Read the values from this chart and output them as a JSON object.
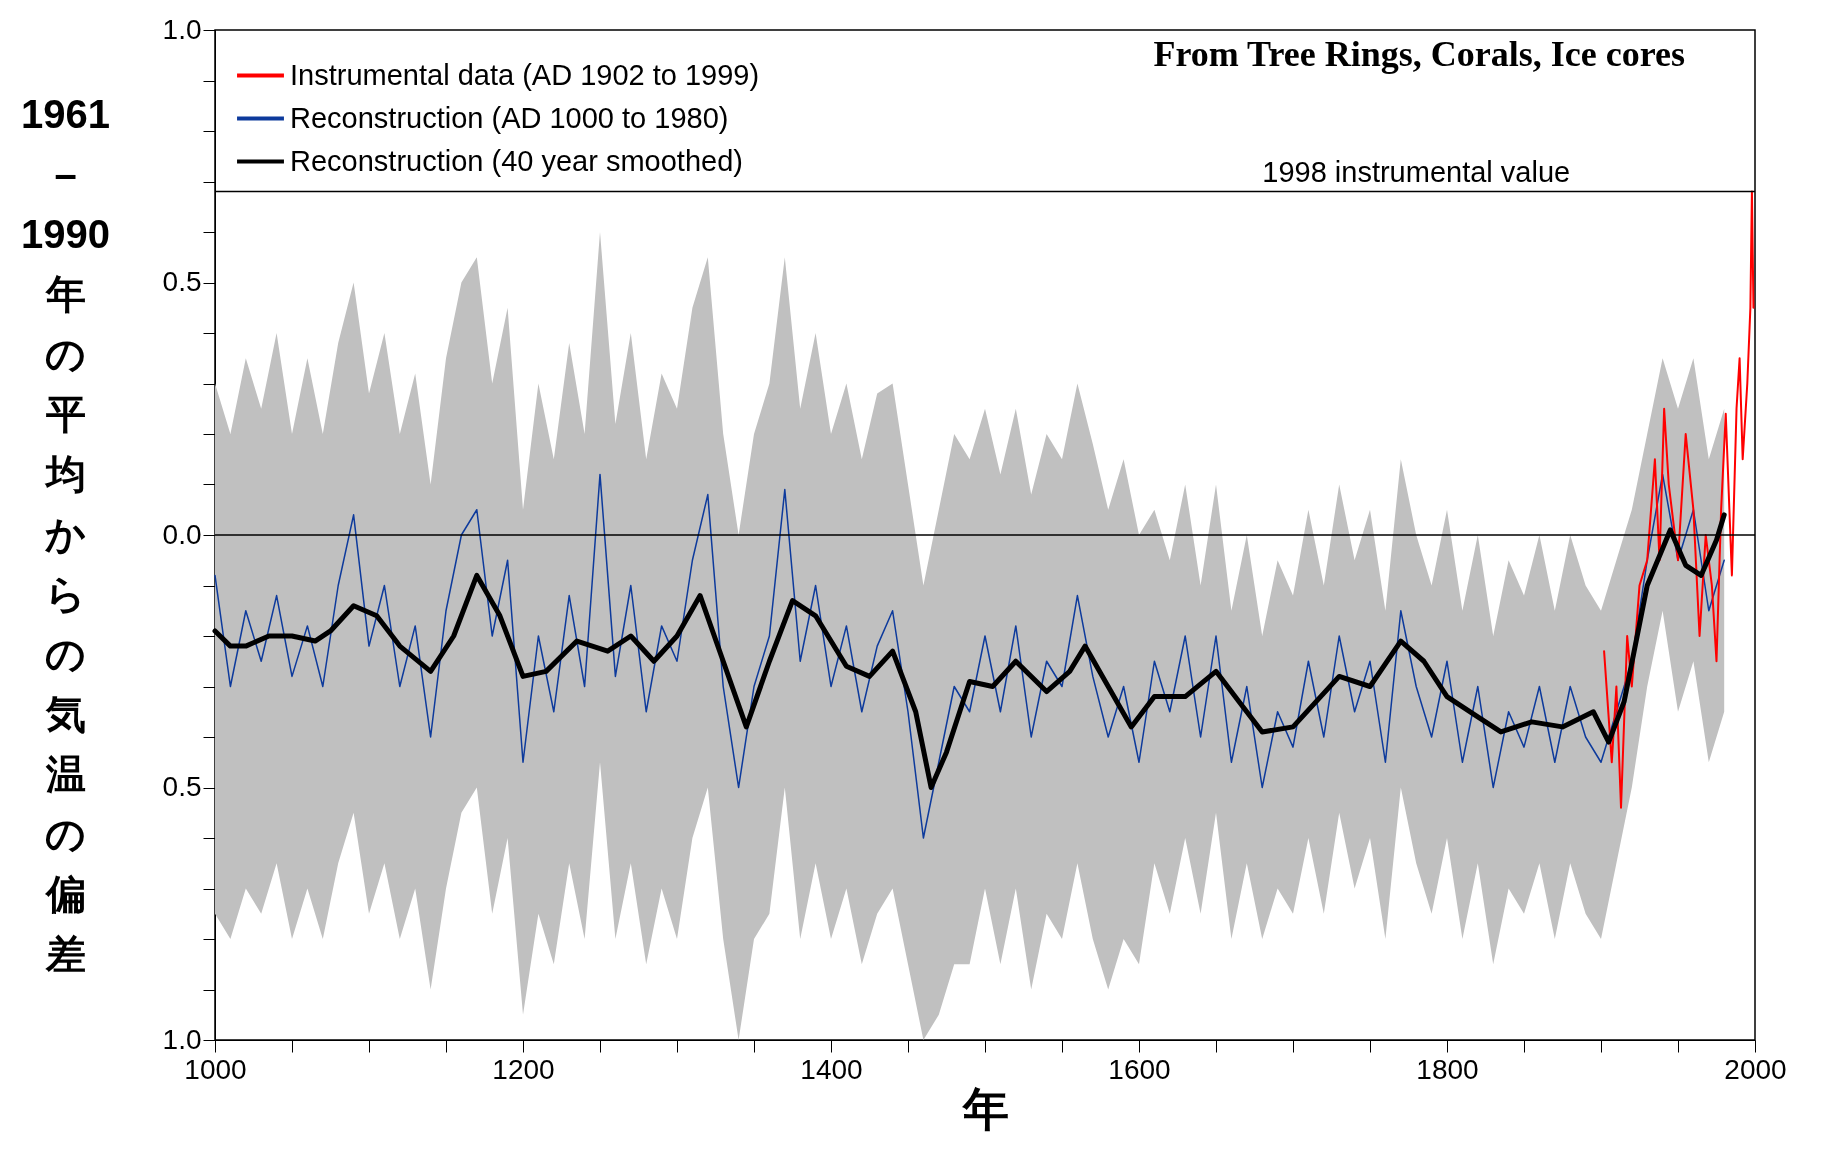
{
  "chart_data": {
    "type": "line",
    "annotations": [
      "From Tree Rings, Corals, Ice cores"
    ],
    "xlabel": "年",
    "ylabel": "1961–1990年の平均からの気温の偏差",
    "xlim": [
      1000,
      2000
    ],
    "xticks": [
      1000,
      {
        "value": 1050,
        "label": null
      },
      {
        "value": 1100,
        "label": null
      },
      {
        "value": 1150,
        "label": null
      },
      1200,
      {
        "value": 1250,
        "label": null
      },
      {
        "value": 1300,
        "label": null
      },
      {
        "value": 1350,
        "label": null
      },
      1400,
      {
        "value": 1450,
        "label": null
      },
      {
        "value": 1500,
        "label": null
      },
      {
        "value": 1550,
        "label": null
      },
      1600,
      {
        "value": 1650,
        "label": null
      },
      {
        "value": 1700,
        "label": null
      },
      {
        "value": 1750,
        "label": null
      },
      1800,
      {
        "value": 1850,
        "label": null
      },
      {
        "value": 1900,
        "label": null
      },
      {
        "value": 1950,
        "label": null
      },
      2000
    ],
    "ylim": [
      -1,
      1
    ],
    "yticks": [
      {
        "value": -1,
        "label": "1.0"
      },
      {
        "value": -0.9,
        "label": null
      },
      {
        "value": -0.8,
        "label": null
      },
      {
        "value": -0.7,
        "label": null
      },
      {
        "value": -0.6,
        "label": null
      },
      {
        "value": -0.5,
        "label": "0.5"
      },
      {
        "value": -0.4,
        "label": null
      },
      {
        "value": -0.3,
        "label": null
      },
      {
        "value": -0.2,
        "label": null
      },
      {
        "value": -0.1,
        "label": null
      },
      {
        "value": 0,
        "label": "0.0"
      },
      {
        "value": 0.1,
        "label": null
      },
      {
        "value": 0.2,
        "label": null
      },
      {
        "value": 0.3,
        "label": null
      },
      {
        "value": 0.4,
        "label": null
      },
      {
        "value": 0.5,
        "label": "0.5"
      },
      {
        "value": 0.6,
        "label": null
      },
      {
        "value": 0.7,
        "label": null
      },
      {
        "value": 0.8,
        "label": null
      },
      {
        "value": 0.9,
        "label": null
      },
      {
        "value": 1,
        "label": "1.0"
      }
    ],
    "grid": false,
    "legend": "top left",
    "marker": "none",
    "ref_lines": [
      {
        "axis": "y",
        "value": 0,
        "color": "#000000"
      },
      {
        "axis": "y",
        "value": 0.68,
        "label": "1998 instrumental value",
        "color": "#000000"
      }
    ],
    "series": [
      {
        "name": "Instrumental data (AD 1902 to 1999)",
        "color": "#ff0000",
        "x": [
          1902,
          1907,
          1910,
          1913,
          1917,
          1920,
          1925,
          1930,
          1935,
          1938,
          1941,
          1944,
          1950,
          1955,
          1960,
          1964,
          1968,
          1972,
          1975,
          1978,
          1981,
          1985,
          1988,
          1990,
          1992,
          1995,
          1997,
          1998,
          1999
        ],
        "values": [
          -0.23,
          -0.45,
          -0.3,
          -0.54,
          -0.2,
          -0.3,
          -0.1,
          -0.05,
          0.15,
          -0.05,
          0.25,
          0.1,
          -0.05,
          0.2,
          0.05,
          -0.2,
          0.0,
          -0.1,
          -0.25,
          0.05,
          0.24,
          -0.08,
          0.25,
          0.35,
          0.15,
          0.3,
          0.45,
          0.68,
          0.45
        ]
      },
      {
        "name": "Reconstruction (AD 1000 to 1980)",
        "color": "#0d3a9c",
        "x": [
          1000,
          1010,
          1020,
          1030,
          1040,
          1050,
          1060,
          1070,
          1080,
          1090,
          1100,
          1110,
          1120,
          1130,
          1140,
          1150,
          1160,
          1170,
          1180,
          1190,
          1200,
          1210,
          1220,
          1230,
          1240,
          1250,
          1260,
          1270,
          1280,
          1290,
          1300,
          1310,
          1320,
          1330,
          1340,
          1350,
          1360,
          1370,
          1380,
          1390,
          1400,
          1410,
          1420,
          1430,
          1440,
          1450,
          1460,
          1470,
          1480,
          1490,
          1500,
          1510,
          1520,
          1530,
          1540,
          1550,
          1560,
          1570,
          1580,
          1590,
          1600,
          1610,
          1620,
          1630,
          1640,
          1650,
          1660,
          1670,
          1680,
          1690,
          1700,
          1710,
          1720,
          1730,
          1740,
          1750,
          1760,
          1770,
          1780,
          1790,
          1800,
          1810,
          1820,
          1830,
          1840,
          1850,
          1860,
          1870,
          1880,
          1890,
          1900,
          1910,
          1920,
          1930,
          1940,
          1950,
          1960,
          1970,
          1980
        ],
        "values": [
          -0.08,
          -0.3,
          -0.15,
          -0.25,
          -0.12,
          -0.28,
          -0.18,
          -0.3,
          -0.1,
          0.04,
          -0.22,
          -0.1,
          -0.3,
          -0.18,
          -0.4,
          -0.15,
          0.0,
          0.05,
          -0.2,
          -0.05,
          -0.45,
          -0.2,
          -0.35,
          -0.12,
          -0.3,
          0.12,
          -0.28,
          -0.1,
          -0.35,
          -0.18,
          -0.25,
          -0.05,
          0.08,
          -0.3,
          -0.5,
          -0.3,
          -0.2,
          0.09,
          -0.25,
          -0.1,
          -0.3,
          -0.18,
          -0.35,
          -0.22,
          -0.15,
          -0.35,
          -0.6,
          -0.45,
          -0.3,
          -0.35,
          -0.2,
          -0.35,
          -0.18,
          -0.4,
          -0.25,
          -0.3,
          -0.12,
          -0.28,
          -0.4,
          -0.3,
          -0.45,
          -0.25,
          -0.35,
          -0.2,
          -0.4,
          -0.2,
          -0.45,
          -0.3,
          -0.5,
          -0.35,
          -0.42,
          -0.25,
          -0.4,
          -0.2,
          -0.35,
          -0.25,
          -0.45,
          -0.15,
          -0.3,
          -0.4,
          -0.25,
          -0.45,
          -0.3,
          -0.5,
          -0.35,
          -0.42,
          -0.3,
          -0.45,
          -0.3,
          -0.4,
          -0.45,
          -0.35,
          -0.25,
          -0.05,
          0.12,
          -0.05,
          0.05,
          -0.15,
          -0.05
        ],
        "lower": [
          -0.75,
          -0.8,
          -0.7,
          -0.75,
          -0.65,
          -0.8,
          -0.7,
          -0.8,
          -0.65,
          -0.55,
          -0.75,
          -0.65,
          -0.8,
          -0.7,
          -0.9,
          -0.7,
          -0.55,
          -0.5,
          -0.75,
          -0.6,
          -0.95,
          -0.75,
          -0.85,
          -0.65,
          -0.8,
          -0.45,
          -0.8,
          -0.65,
          -0.85,
          -0.7,
          -0.8,
          -0.6,
          -0.5,
          -0.8,
          -1.0,
          -0.8,
          -0.75,
          -0.5,
          -0.8,
          -0.65,
          -0.8,
          -0.7,
          -0.85,
          -0.75,
          -0.7,
          -0.85,
          -1.0,
          -0.95,
          -0.85,
          -0.85,
          -0.7,
          -0.85,
          -0.7,
          -0.9,
          -0.75,
          -0.8,
          -0.65,
          -0.8,
          -0.9,
          -0.8,
          -0.85,
          -0.65,
          -0.75,
          -0.6,
          -0.75,
          -0.55,
          -0.8,
          -0.65,
          -0.8,
          -0.7,
          -0.75,
          -0.6,
          -0.75,
          -0.55,
          -0.7,
          -0.6,
          -0.8,
          -0.5,
          -0.65,
          -0.75,
          -0.6,
          -0.8,
          -0.65,
          -0.85,
          -0.7,
          -0.75,
          -0.65,
          -0.8,
          -0.65,
          -0.75,
          -0.8,
          -0.65,
          -0.5,
          -0.3,
          -0.15,
          -0.35,
          -0.25,
          -0.45,
          -0.35
        ],
        "upper": [
          0.3,
          0.2,
          0.35,
          0.25,
          0.4,
          0.2,
          0.35,
          0.2,
          0.38,
          0.5,
          0.28,
          0.4,
          0.2,
          0.32,
          0.1,
          0.35,
          0.5,
          0.55,
          0.3,
          0.45,
          0.05,
          0.3,
          0.15,
          0.38,
          0.2,
          0.6,
          0.22,
          0.4,
          0.15,
          0.32,
          0.25,
          0.45,
          0.55,
          0.2,
          0.0,
          0.2,
          0.3,
          0.55,
          0.25,
          0.4,
          0.2,
          0.3,
          0.15,
          0.28,
          0.3,
          0.1,
          -0.1,
          0.05,
          0.2,
          0.15,
          0.25,
          0.12,
          0.25,
          0.08,
          0.2,
          0.15,
          0.3,
          0.18,
          0.05,
          0.15,
          0.0,
          0.05,
          -0.05,
          0.1,
          -0.1,
          0.1,
          -0.15,
          0.0,
          -0.2,
          -0.05,
          -0.12,
          0.05,
          -0.1,
          0.1,
          -0.05,
          0.05,
          -0.15,
          0.15,
          0.0,
          -0.1,
          0.05,
          -0.15,
          0.0,
          -0.2,
          -0.05,
          -0.12,
          0.0,
          -0.15,
          0.0,
          -0.1,
          -0.15,
          -0.05,
          0.05,
          0.2,
          0.35,
          0.25,
          0.35,
          0.15,
          0.25
        ]
      },
      {
        "name": "Reconstruction (40 year smoothed)",
        "color": "#000000",
        "x": [
          1000,
          1010,
          1020,
          1035,
          1050,
          1065,
          1075,
          1090,
          1105,
          1120,
          1140,
          1155,
          1170,
          1185,
          1200,
          1215,
          1235,
          1255,
          1270,
          1285,
          1300,
          1315,
          1330,
          1345,
          1360,
          1375,
          1390,
          1410,
          1425,
          1440,
          1455,
          1465,
          1475,
          1490,
          1505,
          1520,
          1540,
          1555,
          1565,
          1580,
          1595,
          1610,
          1630,
          1650,
          1665,
          1680,
          1700,
          1715,
          1730,
          1750,
          1770,
          1785,
          1800,
          1820,
          1835,
          1855,
          1875,
          1895,
          1905,
          1915,
          1930,
          1945,
          1955,
          1965,
          1975,
          1980
        ],
        "values": [
          -0.19,
          -0.22,
          -0.22,
          -0.2,
          -0.2,
          -0.21,
          -0.19,
          -0.14,
          -0.16,
          -0.22,
          -0.27,
          -0.2,
          -0.08,
          -0.16,
          -0.28,
          -0.27,
          -0.21,
          -0.23,
          -0.2,
          -0.25,
          -0.2,
          -0.12,
          -0.25,
          -0.38,
          -0.25,
          -0.13,
          -0.16,
          -0.26,
          -0.28,
          -0.23,
          -0.35,
          -0.5,
          -0.43,
          -0.29,
          -0.3,
          -0.25,
          -0.31,
          -0.27,
          -0.22,
          -0.3,
          -0.38,
          -0.32,
          -0.32,
          -0.27,
          -0.33,
          -0.39,
          -0.38,
          -0.33,
          -0.28,
          -0.3,
          -0.21,
          -0.25,
          -0.32,
          -0.36,
          -0.39,
          -0.37,
          -0.38,
          -0.35,
          -0.41,
          -0.33,
          -0.1,
          0.01,
          -0.06,
          -0.08,
          -0.01,
          0.04
        ]
      }
    ]
  }
}
